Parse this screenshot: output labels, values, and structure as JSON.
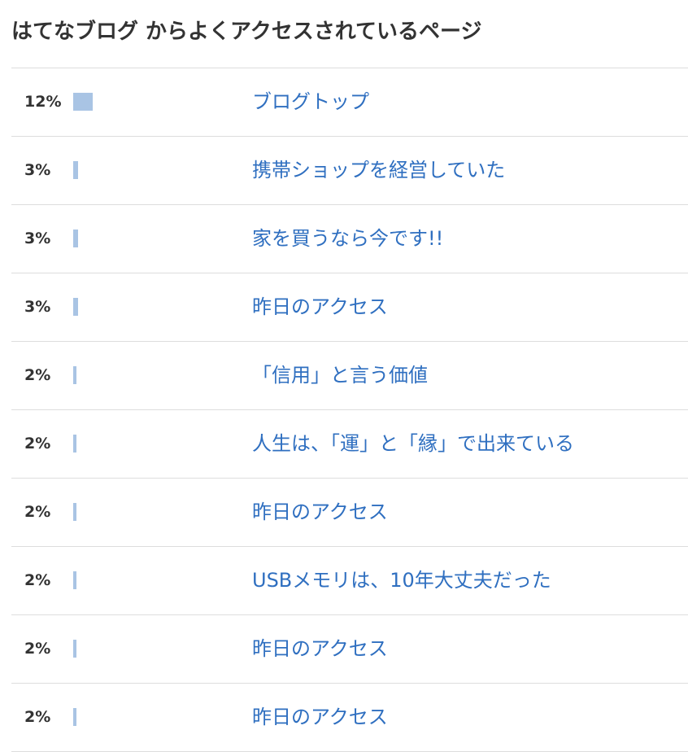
{
  "title": "はてなブログ からよくアクセスされているページ",
  "rows": [
    {
      "share": {
        "value": 12,
        "label": "12%"
      },
      "page": "ブログトップ"
    },
    {
      "share": {
        "value": 3,
        "label": "3%"
      },
      "page": "携帯ショップを経営していた"
    },
    {
      "share": {
        "value": 3,
        "label": "3%"
      },
      "page": "家を買うなら今です!!"
    },
    {
      "share": {
        "value": 3,
        "label": "3%"
      },
      "page": "昨日のアクセス"
    },
    {
      "share": {
        "value": 2,
        "label": "2%"
      },
      "page": "「信用」と言う価値"
    },
    {
      "share": {
        "value": 2,
        "label": "2%"
      },
      "page": "人生は、「運」と「縁」で出来ている"
    },
    {
      "share": {
        "value": 2,
        "label": "2%"
      },
      "page": "昨日のアクセス"
    },
    {
      "share": {
        "value": 2,
        "label": "2%"
      },
      "page": "USBメモリは、10年大丈夫だった"
    },
    {
      "share": {
        "value": 2,
        "label": "2%"
      },
      "page": "昨日のアクセス"
    },
    {
      "share": {
        "value": 2,
        "label": "2%"
      },
      "page": "昨日のアクセス"
    }
  ]
}
